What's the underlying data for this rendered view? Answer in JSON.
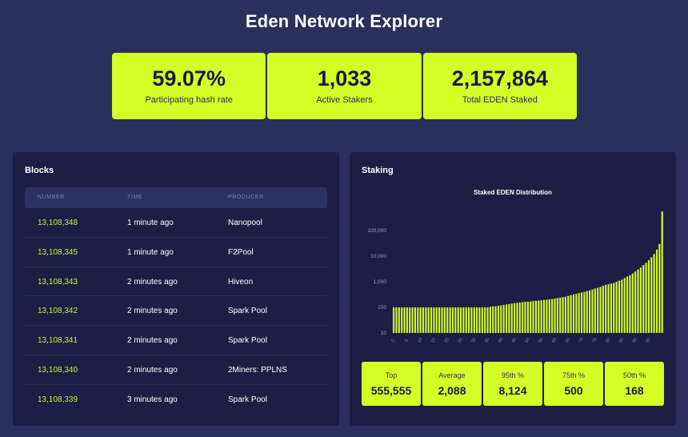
{
  "header": {
    "title": "Eden Network Explorer"
  },
  "stats": [
    {
      "value": "59.07%",
      "label": "Participating hash rate"
    },
    {
      "value": "1,033",
      "label": "Active Stakers"
    },
    {
      "value": "2,157,864",
      "label": "Total EDEN Staked"
    }
  ],
  "blocks": {
    "title": "Blocks",
    "columns": [
      "NUMBER",
      "TIME",
      "PRODUCER"
    ],
    "rows": [
      {
        "number": "13,108,348",
        "time": "1 minute ago",
        "producer": "Nanopool"
      },
      {
        "number": "13,108,345",
        "time": "1 minute ago",
        "producer": "F2Pool"
      },
      {
        "number": "13,108,343",
        "time": "2 minutes ago",
        "producer": "Hiveon"
      },
      {
        "number": "13,108,342",
        "time": "2 minutes ago",
        "producer": "Spark Pool"
      },
      {
        "number": "13,108,341",
        "time": "2 minutes ago",
        "producer": "Spark Pool"
      },
      {
        "number": "13,108,340",
        "time": "2 minutes ago",
        "producer": "2Miners: PPLNS"
      },
      {
        "number": "13,108,339",
        "time": "3 minutes ago",
        "producer": "Spark Pool"
      }
    ]
  },
  "staking": {
    "title": "Staking",
    "summary": [
      {
        "label": "Top",
        "value": "555,555"
      },
      {
        "label": "Average",
        "value": "2,088"
      },
      {
        "label": "95th %",
        "value": "8,124"
      },
      {
        "label": "75th %",
        "value": "500"
      },
      {
        "label": "50th %",
        "value": "168"
      }
    ]
  },
  "chart_data": {
    "type": "bar",
    "title": "Staked EDEN Distribution",
    "yscale": "log",
    "ylim": [
      10,
      1000000
    ],
    "yticks": [
      "10",
      "100",
      "1,000",
      "10,000",
      "100,000"
    ],
    "xtick_labels": [
      "0",
      "5",
      "10",
      "15",
      "20",
      "25",
      "30",
      "35",
      "40",
      "45",
      "50",
      "55",
      "60",
      "65",
      "70",
      "75",
      "80",
      "85",
      "90",
      "95"
    ],
    "colors": {
      "bar": "#d4ff27"
    },
    "values": [
      100,
      100,
      100,
      100,
      100,
      100,
      100,
      100,
      100,
      100,
      100,
      100,
      100,
      100,
      100,
      100,
      100,
      100,
      100,
      100,
      100,
      100,
      100,
      100,
      100,
      100,
      100,
      100,
      100,
      100,
      100,
      100,
      100,
      100,
      100,
      100,
      105,
      110,
      110,
      115,
      120,
      125,
      130,
      135,
      140,
      145,
      150,
      155,
      160,
      165,
      165,
      170,
      175,
      180,
      185,
      190,
      195,
      200,
      205,
      210,
      220,
      230,
      240,
      250,
      260,
      280,
      300,
      320,
      340,
      360,
      380,
      400,
      430,
      460,
      500,
      540,
      580,
      630,
      700,
      760,
      800,
      850,
      900,
      1000,
      1100,
      1200,
      1400,
      1600,
      1800,
      2100,
      2500,
      3000,
      3600,
      4500,
      5500,
      7000,
      9000,
      12000,
      18000,
      30000,
      555555
    ]
  }
}
